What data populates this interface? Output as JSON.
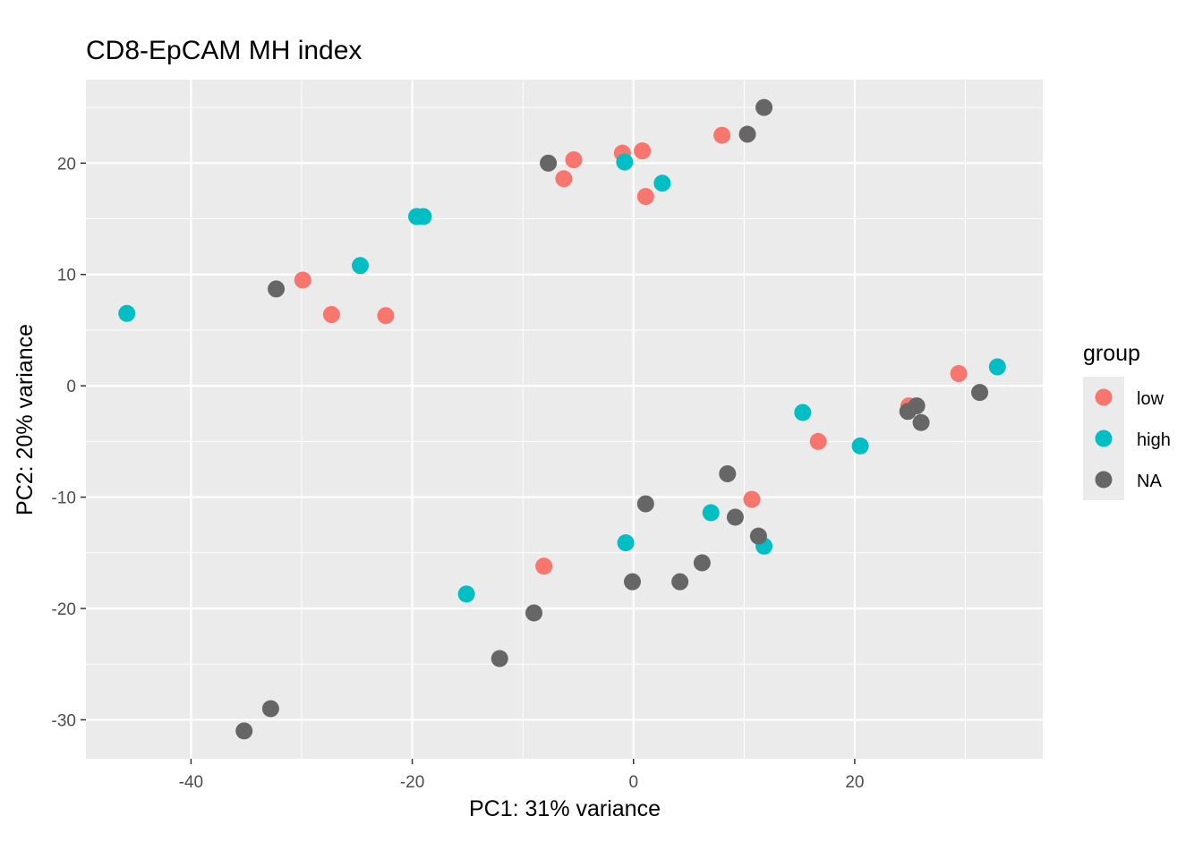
{
  "chart_data": {
    "type": "scatter",
    "title": "CD8-EpCAM MH index",
    "xlabel": "PC1: 31% variance",
    "ylabel": "PC2: 20% variance",
    "xlim": [
      -49.5,
      37.0
    ],
    "ylim": [
      -33.5,
      27.5
    ],
    "x_ticks": [
      -40,
      -20,
      0,
      20
    ],
    "x_tick_labels": [
      "-40",
      "-20",
      "0",
      "20"
    ],
    "y_ticks": [
      -30,
      -20,
      -10,
      0,
      10,
      20
    ],
    "y_tick_labels": [
      "-30",
      "-20",
      "-10",
      "0",
      "10",
      "20"
    ],
    "grid": true,
    "legend": {
      "title": "group",
      "placement": "right",
      "entries": [
        "low",
        "high",
        "NA"
      ]
    },
    "colors": {
      "low": "#F8766D",
      "high": "#00BFC4",
      "NA": "#666666",
      "panel": "#EBEBEB",
      "grid": "#FFFFFF"
    },
    "series": [
      {
        "name": "low",
        "color": "#F8766D",
        "points": [
          [
            -29.9,
            9.5
          ],
          [
            -27.3,
            6.4
          ],
          [
            -22.4,
            6.3
          ],
          [
            -6.3,
            18.6
          ],
          [
            -5.4,
            20.3
          ],
          [
            -1.0,
            20.9
          ],
          [
            0.8,
            21.1
          ],
          [
            1.1,
            17.0
          ],
          [
            8.0,
            22.5
          ],
          [
            29.4,
            1.1
          ],
          [
            24.9,
            -1.8
          ],
          [
            16.7,
            -5.0
          ],
          [
            10.7,
            -10.2
          ],
          [
            -8.1,
            -16.2
          ]
        ]
      },
      {
        "name": "high",
        "color": "#00BFC4",
        "points": [
          [
            -45.8,
            6.5
          ],
          [
            -24.7,
            10.8
          ],
          [
            -19.6,
            15.2
          ],
          [
            -19.0,
            15.2
          ],
          [
            -0.8,
            20.1
          ],
          [
            2.6,
            18.2
          ],
          [
            32.9,
            1.7
          ],
          [
            15.3,
            -2.4
          ],
          [
            20.5,
            -5.4
          ],
          [
            7.0,
            -11.4
          ],
          [
            11.8,
            -14.4
          ],
          [
            -0.7,
            -14.1
          ],
          [
            -15.1,
            -18.7
          ]
        ]
      },
      {
        "name": "NA",
        "color": "#666666",
        "points": [
          [
            -32.3,
            8.7
          ],
          [
            -7.7,
            20.0
          ],
          [
            10.3,
            22.6
          ],
          [
            11.8,
            25.0
          ],
          [
            31.3,
            -0.6
          ],
          [
            25.6,
            -1.8
          ],
          [
            24.8,
            -2.3
          ],
          [
            26.0,
            -3.3
          ],
          [
            8.5,
            -7.9
          ],
          [
            1.1,
            -10.6
          ],
          [
            9.2,
            -11.8
          ],
          [
            11.3,
            -13.5
          ],
          [
            6.2,
            -15.9
          ],
          [
            -0.1,
            -17.6
          ],
          [
            4.2,
            -17.6
          ],
          [
            -9.0,
            -20.4
          ],
          [
            -12.1,
            -24.5
          ],
          [
            -32.8,
            -29.0
          ],
          [
            -35.2,
            -31.0
          ]
        ]
      }
    ]
  }
}
